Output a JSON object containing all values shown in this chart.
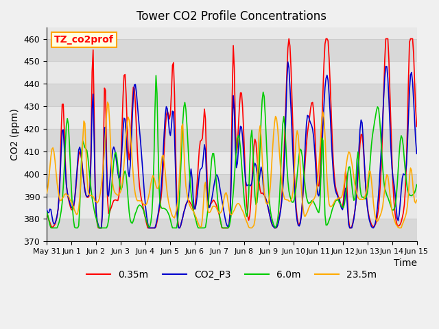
{
  "title": "Tower CO2 Profile Concentrations",
  "ylabel": "CO2 (ppm)",
  "xlabel": "Time",
  "annotation_text": "TZ_co2prof",
  "ylim": [
    370,
    465
  ],
  "series_labels": [
    "0.35m",
    "CO2_P3",
    "6.0m",
    "23.5m"
  ],
  "series_colors": [
    "#ff0000",
    "#0000cc",
    "#00cc00",
    "#ffaa00"
  ],
  "series_linewidths": [
    1.2,
    1.2,
    1.2,
    1.2
  ],
  "background_color": "#f0f0f0",
  "plot_bg_color": "#e8e8e8",
  "band_color": "#d8d8d8",
  "grid_color": "#cccccc",
  "yticks": [
    370,
    380,
    390,
    400,
    410,
    420,
    430,
    440,
    450,
    460
  ],
  "xtick_labels": [
    "May 31",
    "Jun 1",
    "Jun 2",
    "Jun 3",
    "Jun 4",
    "Jun 5",
    "Jun 6",
    "Jun 7",
    "Jun 8",
    "Jun 9",
    "Jun 10",
    "Jun 11",
    "Jun 12",
    "Jun 13",
    "Jun 14",
    "Jun 15"
  ],
  "xtick_positions": [
    0,
    1,
    2,
    3,
    4,
    5,
    6,
    7,
    8,
    9,
    10,
    11,
    12,
    13,
    14,
    15
  ]
}
